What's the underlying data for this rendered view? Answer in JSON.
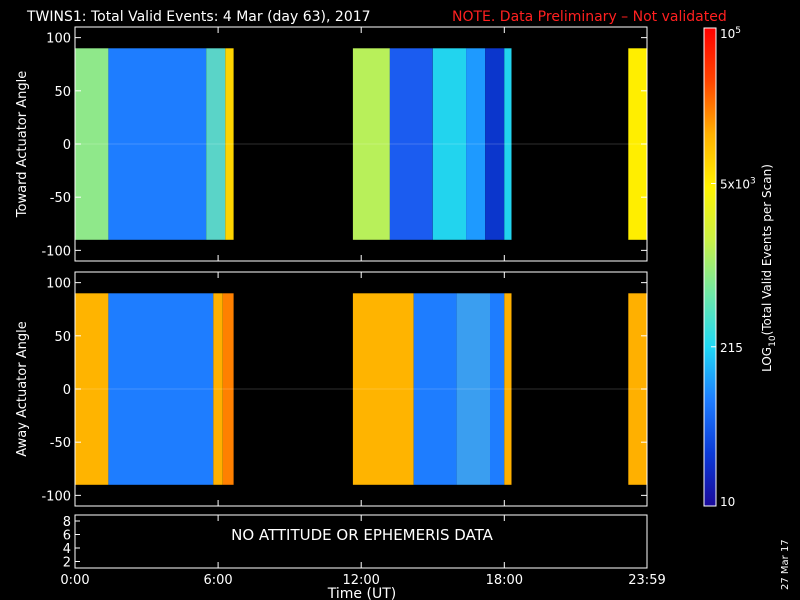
{
  "header": {
    "title": "TWINS1: Total Valid Events:  4 Mar (day  63), 2017",
    "note": "NOTE. Data Preliminary – Not validated"
  },
  "colors": {
    "background": "#000000",
    "foreground": "#ffffff",
    "note": "#ff2020",
    "spectrum_stops": [
      "#1a0a9a",
      "#0b3bd8",
      "#1e7dff",
      "#1fd8f5",
      "#6fe8a6",
      "#c8f046",
      "#fff200",
      "#ffb000",
      "#ff4500",
      "#ff0000"
    ]
  },
  "chart_data": [
    {
      "type": "heatmap",
      "ylabel": "Toward Actuator Angle",
      "ylim": [
        -110,
        110
      ],
      "yticks": [
        "100",
        "50",
        "0",
        "-50",
        "-100"
      ],
      "data_y_range": [
        -90,
        90
      ],
      "x_unit": "hours UT",
      "xlim": [
        0,
        23.983
      ],
      "segments": [
        {
          "start": 0.0,
          "end": 1.4,
          "color": "#8fe88a"
        },
        {
          "start": 1.4,
          "end": 5.5,
          "color": "#1e7dff"
        },
        {
          "start": 5.5,
          "end": 6.3,
          "color": "#5ad4c8"
        },
        {
          "start": 6.3,
          "end": 6.65,
          "color": "#ffd400"
        },
        {
          "start": 11.65,
          "end": 13.2,
          "color": "#b8f05a"
        },
        {
          "start": 13.2,
          "end": 15.0,
          "color": "#1b5cf0"
        },
        {
          "start": 15.0,
          "end": 16.4,
          "color": "#22d4ee"
        },
        {
          "start": 16.4,
          "end": 17.2,
          "color": "#1e9aff"
        },
        {
          "start": 17.2,
          "end": 18.0,
          "color": "#0b36cc"
        },
        {
          "start": 18.0,
          "end": 18.3,
          "color": "#22d4ee"
        },
        {
          "start": 23.2,
          "end": 23.983,
          "color": "#ffee00"
        }
      ]
    },
    {
      "type": "heatmap",
      "ylabel": "Away Actuator Angle",
      "ylim": [
        -110,
        110
      ],
      "yticks": [
        "100",
        "50",
        "0",
        "-50",
        "-100"
      ],
      "data_y_range": [
        -90,
        90
      ],
      "x_unit": "hours UT",
      "xlim": [
        0,
        23.983
      ],
      "segments": [
        {
          "start": 0.0,
          "end": 1.4,
          "color": "#ffb400"
        },
        {
          "start": 1.4,
          "end": 5.8,
          "color": "#1e7dff"
        },
        {
          "start": 5.8,
          "end": 6.2,
          "color": "#ffb000"
        },
        {
          "start": 6.2,
          "end": 6.65,
          "color": "#ff8000"
        },
        {
          "start": 11.65,
          "end": 14.2,
          "color": "#ffb400"
        },
        {
          "start": 14.2,
          "end": 16.0,
          "color": "#1e7dff"
        },
        {
          "start": 16.0,
          "end": 17.4,
          "color": "#3a9ef0"
        },
        {
          "start": 17.4,
          "end": 18.0,
          "color": "#1e7dff"
        },
        {
          "start": 18.0,
          "end": 18.3,
          "color": "#ffb000"
        },
        {
          "start": 23.2,
          "end": 23.983,
          "color": "#ffb000"
        }
      ]
    }
  ],
  "bottom_panel": {
    "message": "NO ATTITUDE OR EPHEMERIS DATA",
    "yticks": [
      "8",
      "6",
      "4",
      "2"
    ]
  },
  "x_axis": {
    "label": "Time (UT)",
    "ticks": [
      {
        "hour": 0,
        "label": "0:00"
      },
      {
        "hour": 6,
        "label": "6:00"
      },
      {
        "hour": 12,
        "label": "12:00"
      },
      {
        "hour": 18,
        "label": "18:00"
      },
      {
        "hour": 23.983,
        "label": "23:59"
      }
    ]
  },
  "colorbar": {
    "label_prefix": "LOG",
    "label_sub": "10",
    "label_suffix": "(Total Valid Events per Scan)",
    "scale": "log",
    "range": [
      10,
      100000
    ],
    "ticks": [
      {
        "value": 100000,
        "base": "10",
        "exp": "5"
      },
      {
        "value": 5000,
        "base": "5x10",
        "exp": "3"
      },
      {
        "value": 215,
        "text": "215"
      },
      {
        "value": 10,
        "text": "10"
      }
    ]
  },
  "footer": {
    "date_stamp": "27 Mar 17"
  }
}
